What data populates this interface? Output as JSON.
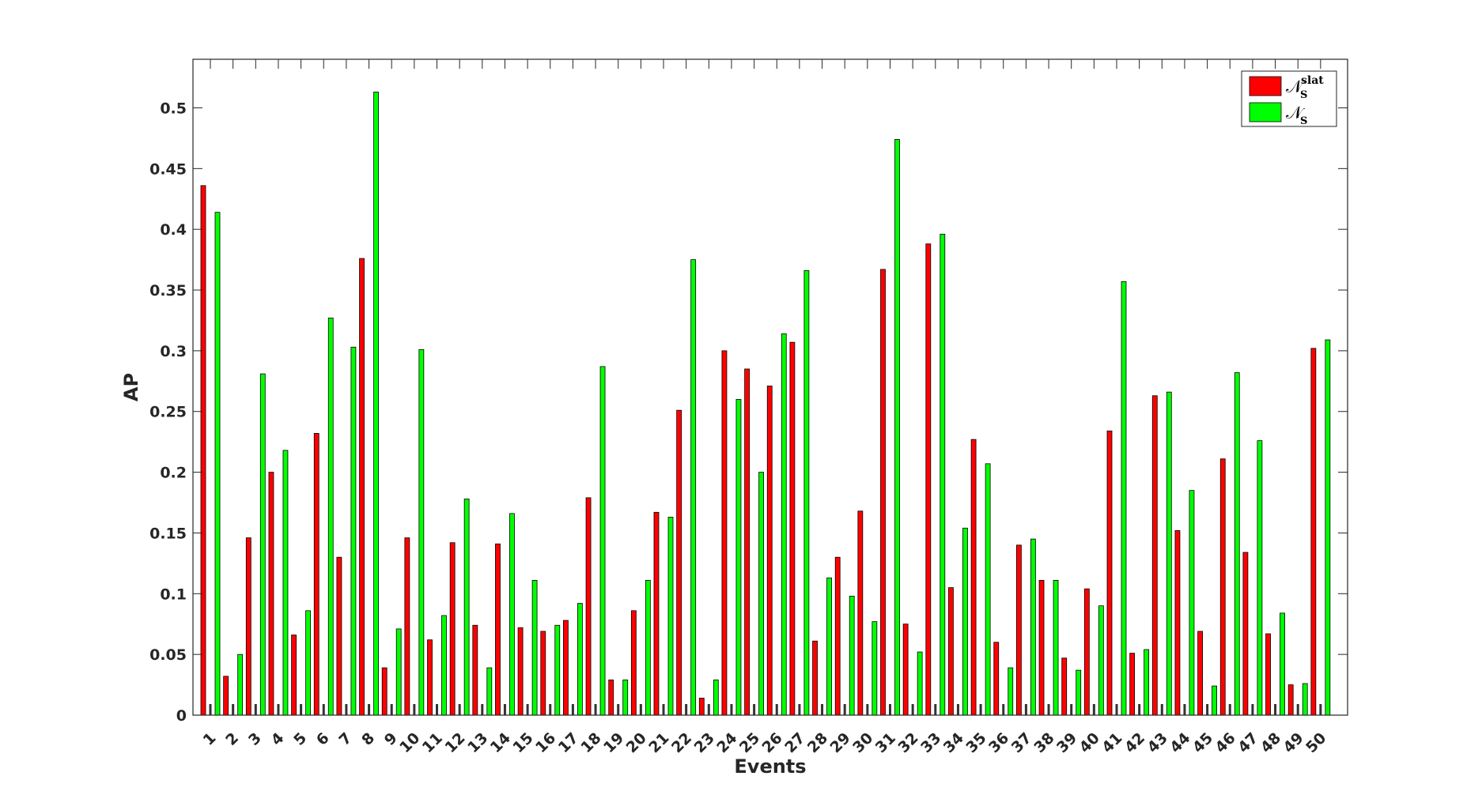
{
  "chart_data": {
    "type": "bar",
    "xlabel": "Events",
    "ylabel": "AP",
    "ylim": [
      0,
      0.54
    ],
    "yticks": [
      0,
      0.05,
      0.1,
      0.15,
      0.2,
      0.25,
      0.3,
      0.35,
      0.4,
      0.45,
      0.5
    ],
    "ytick_labels": [
      "0",
      "0.05",
      "0.1",
      "0.15",
      "0.2",
      "0.25",
      "0.3",
      "0.35",
      "0.4",
      "0.45",
      "0.5"
    ],
    "categories": [
      "1",
      "2",
      "3",
      "4",
      "5",
      "6",
      "7",
      "8",
      "9",
      "10",
      "11",
      "12",
      "13",
      "14",
      "15",
      "16",
      "17",
      "18",
      "19",
      "20",
      "21",
      "22",
      "23",
      "24",
      "25",
      "26",
      "27",
      "28",
      "29",
      "30",
      "31",
      "32",
      "33",
      "34",
      "35",
      "36",
      "37",
      "38",
      "39",
      "40",
      "41",
      "42",
      "43",
      "44",
      "45",
      "46",
      "47",
      "48",
      "49",
      "50"
    ],
    "grid": false,
    "legend_position": "top-right",
    "series": [
      {
        "name": "N_S^slat",
        "legend_main": "𝒩",
        "legend_sub": "S",
        "legend_sup": "slat",
        "color": "#ff0000",
        "values": [
          0.436,
          0.032,
          0.146,
          0.2,
          0.066,
          0.232,
          0.13,
          0.376,
          0.039,
          0.146,
          0.062,
          0.142,
          0.074,
          0.141,
          0.072,
          0.069,
          0.078,
          0.179,
          0.029,
          0.086,
          0.167,
          0.251,
          0.014,
          0.3,
          0.285,
          0.271,
          0.307,
          0.061,
          0.13,
          0.168,
          0.367,
          0.075,
          0.388,
          0.105,
          0.227,
          0.06,
          0.14,
          0.111,
          0.047,
          0.104,
          0.234,
          0.051,
          0.263,
          0.152,
          0.069,
          0.211,
          0.134,
          0.067,
          0.025,
          0.302
        ]
      },
      {
        "name": "N_S",
        "legend_main": "𝒩",
        "legend_sub": "S",
        "legend_sup": "",
        "color": "#00ff00",
        "values": [
          0.414,
          0.05,
          0.281,
          0.218,
          0.086,
          0.327,
          0.303,
          0.513,
          0.071,
          0.301,
          0.082,
          0.178,
          0.039,
          0.166,
          0.111,
          0.074,
          0.092,
          0.287,
          0.029,
          0.111,
          0.163,
          0.375,
          0.029,
          0.26,
          0.2,
          0.314,
          0.366,
          0.113,
          0.098,
          0.077,
          0.474,
          0.052,
          0.396,
          0.154,
          0.207,
          0.039,
          0.145,
          0.111,
          0.037,
          0.09,
          0.357,
          0.054,
          0.266,
          0.185,
          0.024,
          0.282,
          0.226,
          0.084,
          0.026,
          0.309
        ]
      }
    ]
  }
}
